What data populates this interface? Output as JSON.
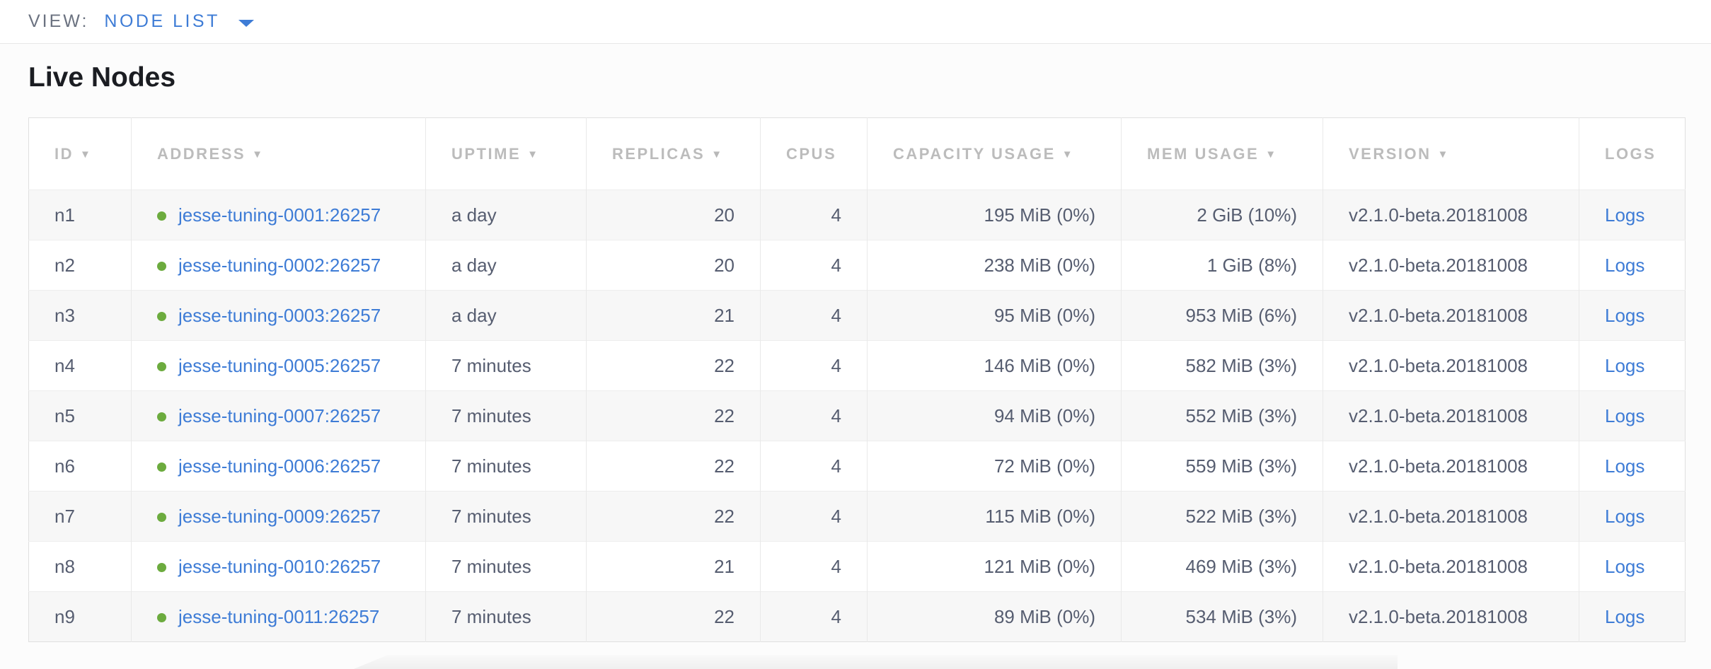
{
  "view_bar": {
    "label": "VIEW:",
    "selected": "NODE LIST"
  },
  "page": {
    "title": "Live Nodes"
  },
  "colors": {
    "link_blue": "#3e7cd6",
    "live_dot_green": "#6cab3e",
    "header_text_gray": "#bcbcbc",
    "cell_text": "#565d70"
  },
  "table": {
    "columns": [
      {
        "key": "id",
        "label": "ID",
        "sortable": true,
        "align": "left"
      },
      {
        "key": "address",
        "label": "ADDRESS",
        "sortable": true,
        "align": "left"
      },
      {
        "key": "uptime",
        "label": "UPTIME",
        "sortable": true,
        "align": "left"
      },
      {
        "key": "replicas",
        "label": "REPLICAS",
        "sortable": true,
        "align": "right"
      },
      {
        "key": "cpus",
        "label": "CPUS",
        "sortable": false,
        "align": "right"
      },
      {
        "key": "capacity_usage",
        "label": "CAPACITY USAGE",
        "sortable": true,
        "align": "right"
      },
      {
        "key": "mem_usage",
        "label": "MEM USAGE",
        "sortable": true,
        "align": "right"
      },
      {
        "key": "version",
        "label": "VERSION",
        "sortable": true,
        "align": "left"
      },
      {
        "key": "logs",
        "label": "LOGS",
        "sortable": false,
        "align": "left"
      }
    ],
    "rows": [
      {
        "id": "n1",
        "status": "live",
        "address": "jesse-tuning-0001:26257",
        "uptime": "a day",
        "replicas": "20",
        "cpus": "4",
        "capacity_usage": "195 MiB (0%)",
        "mem_usage": "2 GiB (10%)",
        "version": "v2.1.0-beta.20181008",
        "logs_label": "Logs"
      },
      {
        "id": "n2",
        "status": "live",
        "address": "jesse-tuning-0002:26257",
        "uptime": "a day",
        "replicas": "20",
        "cpus": "4",
        "capacity_usage": "238 MiB (0%)",
        "mem_usage": "1 GiB (8%)",
        "version": "v2.1.0-beta.20181008",
        "logs_label": "Logs"
      },
      {
        "id": "n3",
        "status": "live",
        "address": "jesse-tuning-0003:26257",
        "uptime": "a day",
        "replicas": "21",
        "cpus": "4",
        "capacity_usage": "95 MiB (0%)",
        "mem_usage": "953 MiB (6%)",
        "version": "v2.1.0-beta.20181008",
        "logs_label": "Logs"
      },
      {
        "id": "n4",
        "status": "live",
        "address": "jesse-tuning-0005:26257",
        "uptime": "7 minutes",
        "replicas": "22",
        "cpus": "4",
        "capacity_usage": "146 MiB (0%)",
        "mem_usage": "582 MiB (3%)",
        "version": "v2.1.0-beta.20181008",
        "logs_label": "Logs"
      },
      {
        "id": "n5",
        "status": "live",
        "address": "jesse-tuning-0007:26257",
        "uptime": "7 minutes",
        "replicas": "22",
        "cpus": "4",
        "capacity_usage": "94 MiB (0%)",
        "mem_usage": "552 MiB (3%)",
        "version": "v2.1.0-beta.20181008",
        "logs_label": "Logs"
      },
      {
        "id": "n6",
        "status": "live",
        "address": "jesse-tuning-0006:26257",
        "uptime": "7 minutes",
        "replicas": "22",
        "cpus": "4",
        "capacity_usage": "72 MiB (0%)",
        "mem_usage": "559 MiB (3%)",
        "version": "v2.1.0-beta.20181008",
        "logs_label": "Logs"
      },
      {
        "id": "n7",
        "status": "live",
        "address": "jesse-tuning-0009:26257",
        "uptime": "7 minutes",
        "replicas": "22",
        "cpus": "4",
        "capacity_usage": "115 MiB (0%)",
        "mem_usage": "522 MiB (3%)",
        "version": "v2.1.0-beta.20181008",
        "logs_label": "Logs"
      },
      {
        "id": "n8",
        "status": "live",
        "address": "jesse-tuning-0010:26257",
        "uptime": "7 minutes",
        "replicas": "21",
        "cpus": "4",
        "capacity_usage": "121 MiB (0%)",
        "mem_usage": "469 MiB (3%)",
        "version": "v2.1.0-beta.20181008",
        "logs_label": "Logs"
      },
      {
        "id": "n9",
        "status": "live",
        "address": "jesse-tuning-0011:26257",
        "uptime": "7 minutes",
        "replicas": "22",
        "cpus": "4",
        "capacity_usage": "89 MiB (0%)",
        "mem_usage": "534 MiB (3%)",
        "version": "v2.1.0-beta.20181008",
        "logs_label": "Logs"
      }
    ]
  }
}
